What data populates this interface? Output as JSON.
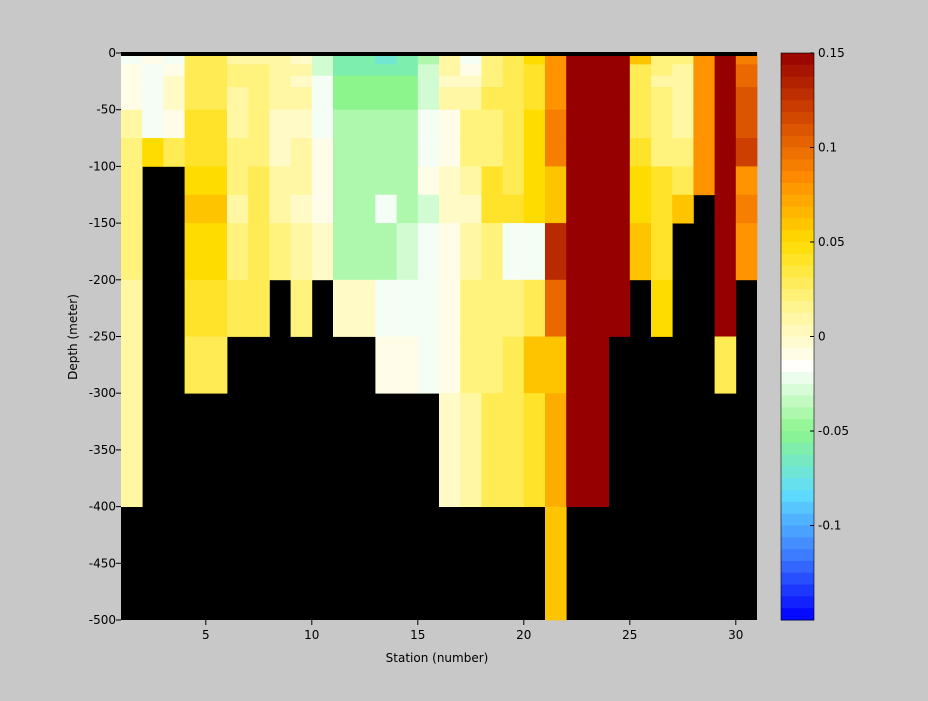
{
  "chart_data": {
    "type": "heatmap",
    "title": "",
    "xlabel": "Station (number)",
    "ylabel": "Depth (meter)",
    "xlim": [
      1,
      31
    ],
    "ylim": [
      -500,
      0
    ],
    "xticks": [
      5,
      10,
      15,
      20,
      25,
      30
    ],
    "yticks": [
      0,
      -50,
      -100,
      -150,
      -200,
      -250,
      -300,
      -350,
      -400,
      -450,
      -500
    ],
    "colorbar": {
      "range": [
        -0.15,
        0.15
      ],
      "ticks": [
        0.15,
        0.1,
        0.05,
        0,
        -0.05,
        -0.1
      ],
      "tick_labels": [
        "0.15",
        "0.1",
        "0.05",
        "0",
        "-0.05",
        "-0.1"
      ],
      "colormap": [
        "#0000ff",
        "#3c78ff",
        "#5fdcff",
        "#8cf58c",
        "#ffffff",
        "#fff58c",
        "#ffdc00",
        "#ff8c00",
        "#d24600",
        "#960000"
      ],
      "nan_color": "#000000"
    },
    "depth_bins": [
      0,
      -10,
      -20,
      -30,
      -50,
      -75,
      -100,
      -125,
      -150,
      -200,
      -250,
      -300,
      -400
    ],
    "stations": [
      1,
      2,
      3,
      4,
      5,
      6,
      7,
      8,
      9,
      10,
      11,
      12,
      13,
      14,
      15,
      16,
      17,
      18,
      19,
      20,
      21,
      22,
      23,
      24,
      25,
      26,
      27,
      28,
      29,
      30
    ],
    "values": [
      [
        -0.02,
        -0.01,
        -0.01,
        -0.01,
        0.01,
        0.02,
        0.02,
        0.02,
        0.02,
        0.01,
        0.01,
        0.01,
        null
      ],
      [
        -0.01,
        -0.02,
        -0.02,
        -0.02,
        -0.02,
        0.05,
        null,
        null,
        null,
        null,
        null,
        null,
        null
      ],
      [
        -0.02,
        -0.01,
        0.0,
        0.0,
        -0.01,
        0.03,
        null,
        null,
        null,
        null,
        null,
        null,
        null
      ],
      [
        0.03,
        0.03,
        0.03,
        0.03,
        0.04,
        0.04,
        0.05,
        0.06,
        0.05,
        0.04,
        0.03,
        null,
        null
      ],
      [
        0.03,
        0.03,
        0.03,
        0.03,
        0.04,
        0.04,
        0.05,
        0.06,
        0.05,
        0.04,
        0.03,
        null,
        null
      ],
      [
        0.01,
        0.02,
        0.02,
        0.01,
        0.01,
        0.02,
        0.02,
        0.01,
        0.02,
        0.03,
        null,
        null,
        null
      ],
      [
        0.01,
        0.02,
        0.02,
        0.02,
        0.02,
        0.02,
        0.03,
        0.03,
        0.03,
        0.03,
        null,
        null,
        null
      ],
      [
        0.01,
        0.01,
        0.01,
        0.01,
        0.0,
        0.0,
        0.01,
        0.01,
        0.02,
        null,
        null,
        null,
        null
      ],
      [
        0.0,
        0.01,
        0.0,
        0.01,
        0.0,
        0.01,
        0.01,
        0.0,
        0.01,
        0.02,
        null,
        null,
        null
      ],
      [
        -0.03,
        -0.03,
        -0.02,
        -0.02,
        -0.02,
        -0.01,
        -0.01,
        -0.01,
        0.0,
        null,
        null,
        null,
        null
      ],
      [
        -0.06,
        -0.06,
        -0.05,
        -0.05,
        -0.04,
        -0.04,
        -0.04,
        -0.04,
        -0.04,
        0.0,
        null,
        null,
        null
      ],
      [
        -0.06,
        -0.06,
        -0.05,
        -0.05,
        -0.04,
        -0.04,
        -0.04,
        -0.04,
        -0.04,
        0.0,
        null,
        null,
        null
      ],
      [
        -0.07,
        -0.06,
        -0.05,
        -0.05,
        -0.04,
        -0.04,
        -0.04,
        -0.02,
        -0.04,
        -0.02,
        -0.01,
        null,
        null
      ],
      [
        -0.06,
        -0.06,
        -0.05,
        -0.05,
        -0.04,
        -0.04,
        -0.04,
        -0.04,
        -0.03,
        -0.02,
        -0.01,
        null,
        null
      ],
      [
        -0.04,
        -0.03,
        -0.03,
        -0.03,
        -0.02,
        -0.02,
        -0.01,
        -0.03,
        -0.02,
        -0.02,
        -0.02,
        null,
        null
      ],
      [
        0.01,
        0.01,
        0.0,
        0.01,
        -0.01,
        -0.01,
        0.0,
        0.0,
        -0.01,
        -0.01,
        -0.01,
        0.0,
        null
      ],
      [
        -0.02,
        -0.01,
        0.0,
        0.01,
        0.02,
        0.02,
        0.01,
        0.0,
        0.01,
        0.02,
        0.02,
        0.01,
        null
      ],
      [
        0.02,
        0.02,
        0.02,
        0.03,
        0.02,
        0.02,
        0.04,
        0.04,
        0.02,
        0.02,
        0.02,
        0.03,
        null
      ],
      [
        0.03,
        0.03,
        0.03,
        0.03,
        0.03,
        0.03,
        0.03,
        0.04,
        -0.02,
        0.02,
        0.03,
        0.03,
        null
      ],
      [
        0.05,
        0.04,
        0.04,
        0.04,
        0.05,
        0.05,
        0.05,
        0.05,
        -0.02,
        0.03,
        0.06,
        0.04,
        null
      ],
      [
        0.08,
        0.08,
        0.08,
        0.08,
        0.09,
        0.09,
        0.06,
        0.06,
        0.13,
        0.1,
        0.06,
        0.07,
        0.06
      ],
      [
        0.15,
        0.15,
        0.15,
        0.15,
        0.15,
        0.15,
        0.15,
        0.15,
        0.15,
        0.15,
        0.15,
        0.15,
        null
      ],
      [
        0.15,
        0.15,
        0.15,
        0.15,
        0.15,
        0.15,
        0.15,
        0.15,
        0.15,
        0.15,
        0.15,
        0.15,
        null
      ],
      [
        0.15,
        0.15,
        0.15,
        0.15,
        0.15,
        0.15,
        0.15,
        0.15,
        0.15,
        0.15,
        null,
        null,
        null
      ],
      [
        0.06,
        0.03,
        0.03,
        0.03,
        0.03,
        0.04,
        0.05,
        0.05,
        0.06,
        null,
        null,
        null,
        null
      ],
      [
        0.02,
        0.02,
        0.01,
        0.02,
        0.02,
        0.02,
        0.04,
        0.04,
        0.04,
        0.05,
        null,
        null,
        null
      ],
      [
        0.02,
        0.01,
        0.01,
        0.01,
        0.01,
        0.02,
        0.03,
        0.06,
        null,
        null,
        null,
        null,
        null
      ],
      [
        0.08,
        0.08,
        0.08,
        0.08,
        0.08,
        0.08,
        0.08,
        null,
        null,
        null,
        null,
        null,
        null
      ],
      [
        0.15,
        0.15,
        0.15,
        0.15,
        0.15,
        0.15,
        0.15,
        0.15,
        0.15,
        0.15,
        0.03,
        null,
        null
      ],
      [
        0.09,
        0.1,
        0.1,
        0.11,
        0.11,
        0.12,
        0.08,
        0.09,
        0.08,
        null,
        null,
        null,
        null
      ]
    ]
  }
}
